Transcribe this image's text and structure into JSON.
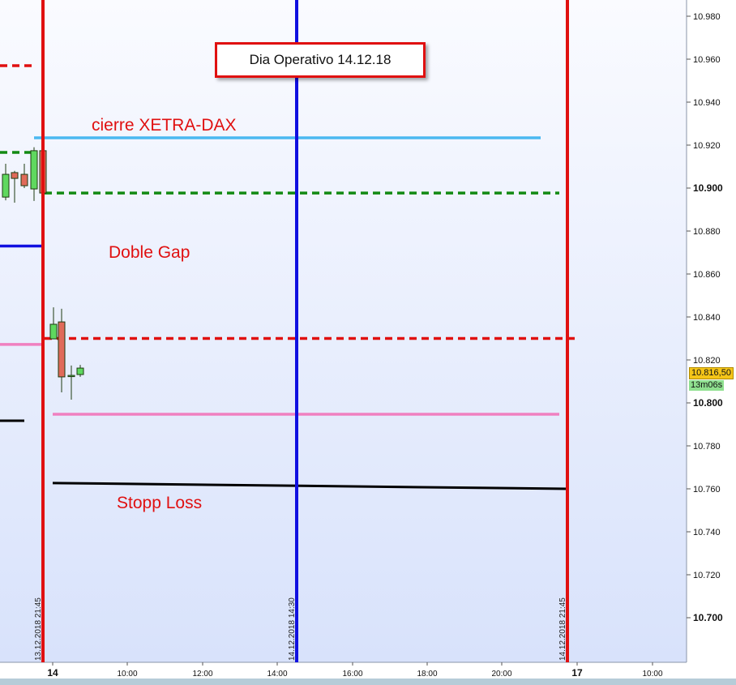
{
  "chart_data": {
    "type": "candlestick",
    "title": "Dia Operativo 14.12.18",
    "ylim": [
      10.68,
      10.99
    ],
    "y_ticks": [
      "10.980",
      "10.960",
      "10.940",
      "10.920",
      "10.900",
      "10.880",
      "10.860",
      "10.840",
      "10.820",
      "10.800",
      "10.780",
      "10.760",
      "10.740",
      "10.720",
      "10.700"
    ],
    "y_ticks_bold": [
      "10.900",
      "10.800",
      "10.700"
    ],
    "x_ticks": [
      "14",
      "10:00",
      "12:00",
      "14:00",
      "16:00",
      "18:00",
      "20:00",
      "17",
      "10:00"
    ],
    "x_ticks_bold": [
      "14",
      "17"
    ],
    "candles": [
      {
        "o": 10.8958,
        "h": 10.9113,
        "l": 10.8943,
        "c": 10.9064
      },
      {
        "o": 10.9072,
        "h": 10.908,
        "l": 10.8932,
        "c": 10.9045
      },
      {
        "o": 10.9064,
        "h": 10.9113,
        "l": 10.9,
        "c": 10.9011
      },
      {
        "o": 10.8996,
        "h": 10.919,
        "l": 10.894,
        "c": 10.9174
      },
      {
        "o": 10.9174,
        "h": 10.9174,
        "l": 10.8977,
        "c": 10.8977
      },
      {
        "o": 10.8298,
        "h": 10.8445,
        "l": 10.8298,
        "c": 10.8366
      },
      {
        "o": 10.8377,
        "h": 10.8438,
        "l": 10.8049,
        "c": 10.8121
      },
      {
        "o": 10.8128,
        "h": 10.8174,
        "l": 10.8015,
        "c": 10.8128
      },
      {
        "o": 10.8132,
        "h": 10.8177,
        "l": 10.8121,
        "c": 10.8162
      }
    ],
    "horizontal_lines": [
      {
        "price": 10.957,
        "color": "#e01010",
        "style": "dashed"
      },
      {
        "price": 10.9234,
        "color": "#4ab8f0",
        "style": "solid"
      },
      {
        "price": 10.9166,
        "color": "#138a13",
        "style": "dashed"
      },
      {
        "price": 10.8977,
        "color": "#138a13",
        "style": "dashed"
      },
      {
        "price": 10.873,
        "color": "#1010e0",
        "style": "solid"
      },
      {
        "price": 10.83,
        "color": "#e01010",
        "style": "dashed"
      },
      {
        "price": 10.8272,
        "color": "#f080c0",
        "style": "solid"
      },
      {
        "price": 10.7947,
        "color": "#f080c0",
        "style": "solid"
      },
      {
        "price": 10.7917,
        "color": "#000000",
        "style": "solid"
      },
      {
        "price": 10.7627,
        "price_end": 10.76,
        "color": "#000000",
        "style": "solid"
      }
    ],
    "vertical_lines": [
      {
        "label": "13.12.2018 21:45",
        "color": "#e01010"
      },
      {
        "label": "14.12.2018 14:30",
        "color": "#1010e0"
      },
      {
        "label": "14.12.2018 21:45",
        "color": "#e01010"
      }
    ],
    "annotations": [
      "cierre XETRA-DAX",
      "Doble Gap",
      "Stopp Loss"
    ],
    "current_price": "10.816,50",
    "bar_timer": "13m06s",
    "colors": {
      "up": "#5fd85f",
      "down": "#e06a5a",
      "background_top": "#fafbff",
      "background_bottom": "#d8e2fb"
    }
  }
}
